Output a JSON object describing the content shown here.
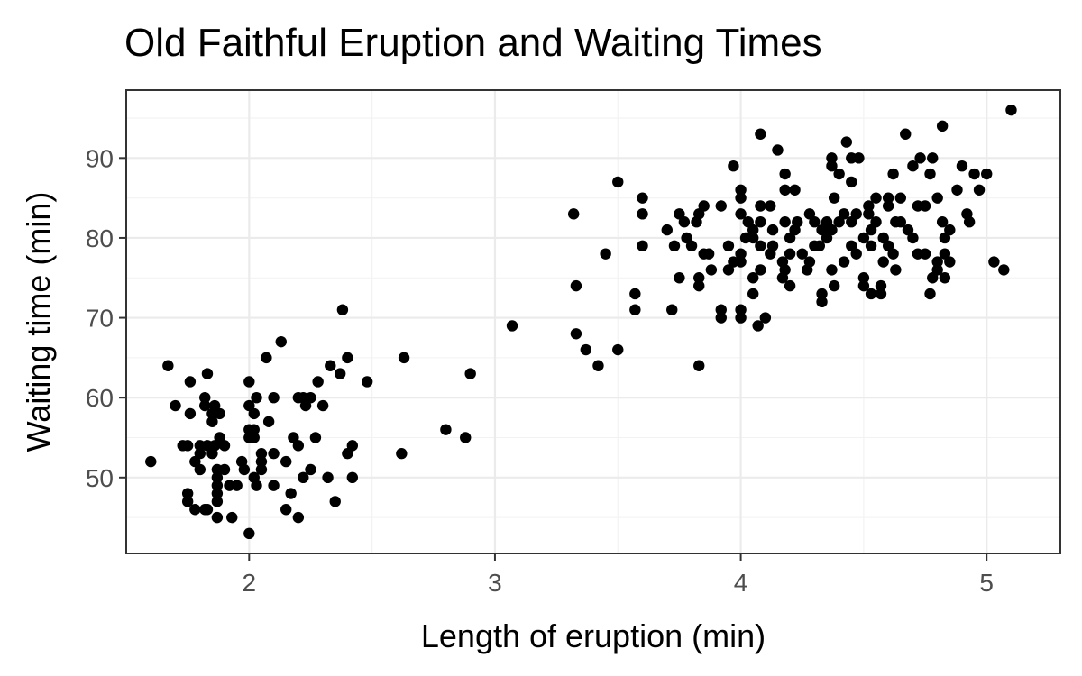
{
  "chart_data": {
    "type": "scatter",
    "title": "Old Faithful Eruption and Waiting Times",
    "xlabel": "Length of eruption (min)",
    "ylabel": "Waiting time (min)",
    "xlim": [
      1.5,
      5.3
    ],
    "ylim": [
      40.5,
      98.5
    ],
    "x_ticks": [
      2,
      3,
      4,
      5
    ],
    "y_ticks": [
      50,
      60,
      70,
      80,
      90
    ],
    "x_minor_ticks": [
      1.5,
      2.5,
      3.5,
      4.5
    ],
    "y_minor_ticks": [
      45,
      55,
      65,
      75,
      85,
      95
    ],
    "grid": true,
    "legend": "none",
    "point_color": "#000000",
    "points": [
      [
        1.6,
        52
      ],
      [
        1.67,
        64
      ],
      [
        1.7,
        59
      ],
      [
        1.73,
        54
      ],
      [
        1.75,
        54
      ],
      [
        1.75,
        48
      ],
      [
        1.75,
        47
      ],
      [
        1.76,
        62
      ],
      [
        1.76,
        58
      ],
      [
        1.78,
        46
      ],
      [
        1.78,
        52
      ],
      [
        1.8,
        51
      ],
      [
        1.8,
        53
      ],
      [
        1.8,
        54
      ],
      [
        1.82,
        60
      ],
      [
        1.82,
        59
      ],
      [
        1.82,
        46
      ],
      [
        1.83,
        54
      ],
      [
        1.83,
        63
      ],
      [
        1.83,
        46
      ],
      [
        1.85,
        57
      ],
      [
        1.85,
        58
      ],
      [
        1.85,
        53
      ],
      [
        1.86,
        54
      ],
      [
        1.86,
        59
      ],
      [
        1.87,
        51
      ],
      [
        1.87,
        50
      ],
      [
        1.87,
        49
      ],
      [
        1.87,
        48
      ],
      [
        1.87,
        47
      ],
      [
        1.87,
        45
      ],
      [
        1.88,
        58
      ],
      [
        1.88,
        55
      ],
      [
        1.9,
        54
      ],
      [
        1.9,
        51
      ],
      [
        1.92,
        49
      ],
      [
        1.93,
        45
      ],
      [
        1.95,
        49
      ],
      [
        1.97,
        52
      ],
      [
        1.98,
        51
      ],
      [
        2.0,
        62
      ],
      [
        2.0,
        59
      ],
      [
        2.0,
        56
      ],
      [
        2.0,
        55
      ],
      [
        2.0,
        43
      ],
      [
        2.02,
        58
      ],
      [
        2.02,
        56
      ],
      [
        2.02,
        55
      ],
      [
        2.02,
        50
      ],
      [
        2.03,
        60
      ],
      [
        2.03,
        49
      ],
      [
        2.05,
        53
      ],
      [
        2.05,
        52
      ],
      [
        2.05,
        51
      ],
      [
        2.07,
        65
      ],
      [
        2.08,
        57
      ],
      [
        2.1,
        60
      ],
      [
        2.1,
        53
      ],
      [
        2.1,
        49
      ],
      [
        2.13,
        67
      ],
      [
        2.15,
        52
      ],
      [
        2.15,
        46
      ],
      [
        2.17,
        48
      ],
      [
        2.18,
        55
      ],
      [
        2.2,
        60
      ],
      [
        2.2,
        54
      ],
      [
        2.2,
        45
      ],
      [
        2.22,
        60
      ],
      [
        2.22,
        50
      ],
      [
        2.23,
        59
      ],
      [
        2.25,
        60
      ],
      [
        2.25,
        51
      ],
      [
        2.27,
        55
      ],
      [
        2.28,
        62
      ],
      [
        2.3,
        59
      ],
      [
        2.32,
        50
      ],
      [
        2.33,
        64
      ],
      [
        2.35,
        47
      ],
      [
        2.37,
        63
      ],
      [
        2.38,
        71
      ],
      [
        2.4,
        65
      ],
      [
        2.4,
        53
      ],
      [
        2.42,
        54
      ],
      [
        2.42,
        50
      ],
      [
        2.48,
        62
      ],
      [
        2.62,
        53
      ],
      [
        2.63,
        65
      ],
      [
        2.8,
        56
      ],
      [
        2.88,
        55
      ],
      [
        2.9,
        63
      ],
      [
        3.07,
        69
      ],
      [
        3.32,
        83
      ],
      [
        3.33,
        74
      ],
      [
        3.33,
        68
      ],
      [
        3.37,
        66
      ],
      [
        3.42,
        64
      ],
      [
        3.45,
        78
      ],
      [
        3.5,
        87
      ],
      [
        3.5,
        66
      ],
      [
        3.57,
        73
      ],
      [
        3.57,
        71
      ],
      [
        3.6,
        85
      ],
      [
        3.6,
        83
      ],
      [
        3.6,
        79
      ],
      [
        3.7,
        81
      ],
      [
        3.72,
        71
      ],
      [
        3.73,
        79
      ],
      [
        3.75,
        83
      ],
      [
        3.75,
        75
      ],
      [
        3.77,
        82
      ],
      [
        3.78,
        80
      ],
      [
        3.8,
        79
      ],
      [
        3.82,
        82
      ],
      [
        3.83,
        83
      ],
      [
        3.83,
        75
      ],
      [
        3.83,
        74
      ],
      [
        3.83,
        64
      ],
      [
        3.85,
        84
      ],
      [
        3.85,
        78
      ],
      [
        3.87,
        78
      ],
      [
        3.88,
        76
      ],
      [
        3.92,
        84
      ],
      [
        3.92,
        71
      ],
      [
        3.92,
        70
      ],
      [
        3.95,
        79
      ],
      [
        3.95,
        76
      ],
      [
        3.97,
        89
      ],
      [
        3.97,
        77
      ],
      [
        4.0,
        86
      ],
      [
        4.0,
        85
      ],
      [
        4.0,
        83
      ],
      [
        4.0,
        78
      ],
      [
        4.0,
        77
      ],
      [
        4.0,
        71
      ],
      [
        4.0,
        70
      ],
      [
        4.02,
        80
      ],
      [
        4.03,
        82
      ],
      [
        4.05,
        81
      ],
      [
        4.05,
        80
      ],
      [
        4.05,
        75
      ],
      [
        4.05,
        73
      ],
      [
        4.07,
        69
      ],
      [
        4.08,
        93
      ],
      [
        4.08,
        84
      ],
      [
        4.08,
        82
      ],
      [
        4.08,
        79
      ],
      [
        4.08,
        76
      ],
      [
        4.1,
        70
      ],
      [
        4.12,
        84
      ],
      [
        4.12,
        78
      ],
      [
        4.13,
        81
      ],
      [
        4.13,
        79
      ],
      [
        4.15,
        91
      ],
      [
        4.17,
        75
      ],
      [
        4.17,
        77
      ],
      [
        4.18,
        88
      ],
      [
        4.18,
        86
      ],
      [
        4.18,
        82
      ],
      [
        4.18,
        76
      ],
      [
        4.2,
        74
      ],
      [
        4.2,
        80
      ],
      [
        4.2,
        78
      ],
      [
        4.22,
        86
      ],
      [
        4.22,
        81
      ],
      [
        4.23,
        82
      ],
      [
        4.25,
        78
      ],
      [
        4.27,
        76
      ],
      [
        4.28,
        83
      ],
      [
        4.28,
        77
      ],
      [
        4.3,
        82
      ],
      [
        4.3,
        79
      ],
      [
        4.32,
        79
      ],
      [
        4.33,
        81
      ],
      [
        4.33,
        73
      ],
      [
        4.33,
        72
      ],
      [
        4.35,
        82
      ],
      [
        4.35,
        80
      ],
      [
        4.37,
        90
      ],
      [
        4.37,
        89
      ],
      [
        4.37,
        81
      ],
      [
        4.37,
        76
      ],
      [
        4.38,
        74
      ],
      [
        4.38,
        85
      ],
      [
        4.4,
        82
      ],
      [
        4.4,
        88
      ],
      [
        4.42,
        83
      ],
      [
        4.42,
        77
      ],
      [
        4.43,
        92
      ],
      [
        4.45,
        90
      ],
      [
        4.45,
        87
      ],
      [
        4.45,
        79
      ],
      [
        4.45,
        82
      ],
      [
        4.47,
        78
      ],
      [
        4.47,
        83
      ],
      [
        4.48,
        90
      ],
      [
        4.5,
        74
      ],
      [
        4.5,
        75
      ],
      [
        4.5,
        80
      ],
      [
        4.52,
        84
      ],
      [
        4.52,
        83
      ],
      [
        4.53,
        81
      ],
      [
        4.53,
        79
      ],
      [
        4.53,
        73
      ],
      [
        4.55,
        85
      ],
      [
        4.55,
        82
      ],
      [
        4.57,
        74
      ],
      [
        4.57,
        73
      ],
      [
        4.58,
        80
      ],
      [
        4.58,
        77
      ],
      [
        4.6,
        84
      ],
      [
        4.6,
        85
      ],
      [
        4.6,
        79
      ],
      [
        4.62,
        88
      ],
      [
        4.62,
        78
      ],
      [
        4.63,
        82
      ],
      [
        4.63,
        76
      ],
      [
        4.65,
        85
      ],
      [
        4.65,
        82
      ],
      [
        4.67,
        93
      ],
      [
        4.68,
        81
      ],
      [
        4.7,
        89
      ],
      [
        4.7,
        80
      ],
      [
        4.72,
        84
      ],
      [
        4.72,
        78
      ],
      [
        4.73,
        90
      ],
      [
        4.75,
        84
      ],
      [
        4.75,
        78
      ],
      [
        4.77,
        88
      ],
      [
        4.77,
        73
      ],
      [
        4.78,
        90
      ],
      [
        4.78,
        75
      ],
      [
        4.8,
        85
      ],
      [
        4.8,
        77
      ],
      [
        4.8,
        76
      ],
      [
        4.82,
        94
      ],
      [
        4.82,
        82
      ],
      [
        4.83,
        80
      ],
      [
        4.83,
        78
      ],
      [
        4.83,
        75
      ],
      [
        4.85,
        81
      ],
      [
        4.85,
        77
      ],
      [
        4.88,
        86
      ],
      [
        4.9,
        89
      ],
      [
        4.92,
        83
      ],
      [
        4.93,
        82
      ],
      [
        4.95,
        88
      ],
      [
        4.97,
        86
      ],
      [
        5.0,
        88
      ],
      [
        5.03,
        77
      ],
      [
        5.07,
        76
      ],
      [
        5.1,
        96
      ]
    ]
  }
}
